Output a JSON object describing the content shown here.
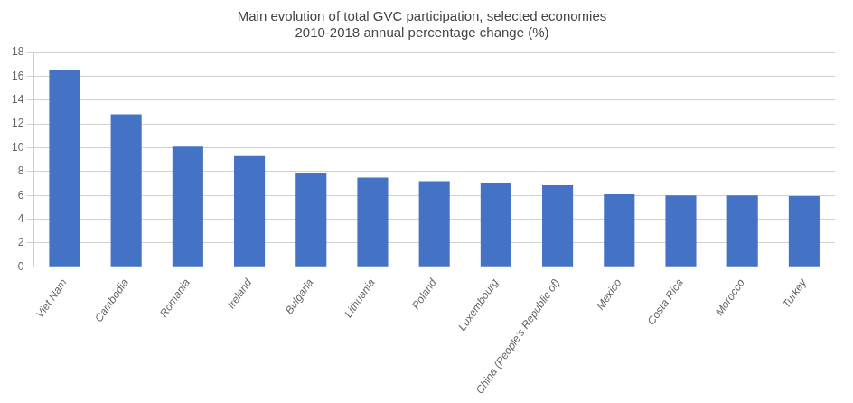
{
  "chart_data": {
    "type": "bar",
    "title": "Main evolution of total GVC participation, selected economies\n2010-2018 annual percentage change (%)",
    "categories": [
      "Viet Nam",
      "Cambodia",
      "Romania",
      "Ireland",
      "Bulgaria",
      "Lithuania",
      "Poland",
      "Luxembourg",
      "China (People’s Republic of)",
      "Mexico",
      "Costa Rica",
      "Morocco",
      "Turkey"
    ],
    "values": [
      16.5,
      12.8,
      10.1,
      9.3,
      7.9,
      7.5,
      7.2,
      7.0,
      6.85,
      6.1,
      6.0,
      6.0,
      5.95
    ],
    "color": "#4472C4",
    "ylim": [
      0,
      18
    ],
    "yticks": [
      0,
      2,
      4,
      6,
      8,
      10,
      12,
      14,
      16,
      18
    ],
    "grid": true
  }
}
